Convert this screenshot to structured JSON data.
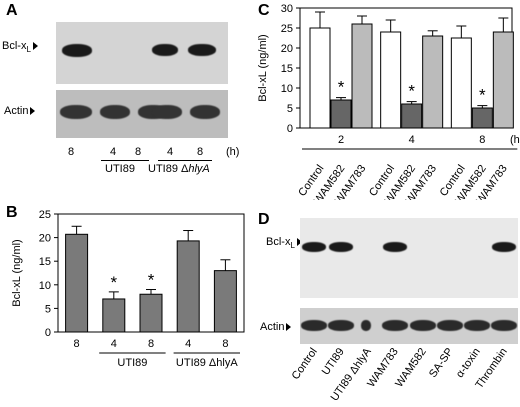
{
  "panels": {
    "A": "A",
    "B": "B",
    "C": "C",
    "D": "D"
  },
  "blot_labels": {
    "bcl": "Bcl-x",
    "bcl_sub": "L",
    "actin": "Actin"
  },
  "panel_a": {
    "lanes": [
      "8",
      "4",
      "8",
      "4",
      "8"
    ],
    "unit": "(h)",
    "group1": "UTI89",
    "group2_prefix": "UTI89 Δ",
    "group2_gene": "hlyA",
    "bcl_band_intensity": [
      1,
      0,
      0,
      0.9,
      0.9
    ],
    "actin_band_intensity": [
      1,
      1,
      1,
      1,
      1
    ]
  },
  "panel_d": {
    "lanes": [
      "Control",
      "UTI89",
      "UTI89 ΔhlyA",
      "WAM783",
      "WAM582",
      "SA-SP",
      "α-toxin",
      "Thrombin"
    ],
    "bcl_band_intensity": [
      1,
      1,
      0,
      1,
      0,
      0,
      0,
      1
    ],
    "actin_band_intensity": [
      1,
      1,
      0.2,
      1,
      1,
      1,
      1,
      1
    ]
  },
  "chart_data": [
    {
      "panel": "B",
      "type": "bar",
      "categories": [
        "8",
        "4",
        "8",
        "4",
        "8"
      ],
      "groups": [
        {
          "label": "UTI89",
          "categories": [
            1,
            2
          ]
        },
        {
          "label": "UTI89 ΔhlyA",
          "categories": [
            3,
            4
          ]
        }
      ],
      "values": [
        20.7,
        7.0,
        8.0,
        19.3,
        13.0
      ],
      "errors": [
        1.7,
        1.5,
        1.0,
        2.2,
        2.3
      ],
      "significance": [
        "",
        "*",
        "*",
        "",
        ""
      ],
      "ylabel": "Bcl-xL (ng/ml)",
      "yticks": [
        0,
        5,
        10,
        15,
        20,
        25
      ],
      "ylim": [
        0,
        25
      ],
      "bar_color": "#7a7a7a"
    },
    {
      "panel": "C",
      "type": "bar",
      "time_points": [
        "2",
        "4",
        "8"
      ],
      "time_unit": "(h)",
      "categories": [
        "Control",
        "WAM582",
        "WAM783"
      ],
      "series": [
        {
          "name": "Control",
          "values": [
            25.0,
            24.0,
            22.5
          ],
          "errors": [
            4.0,
            3.0,
            3.0
          ],
          "color": "#ffffff"
        },
        {
          "name": "WAM582",
          "values": [
            7.0,
            6.0,
            5.0
          ],
          "errors": [
            0.6,
            0.6,
            0.6
          ],
          "color": "#666666",
          "significance": [
            "*",
            "*",
            "*"
          ]
        },
        {
          "name": "WAM783",
          "values": [
            26.0,
            23.0,
            24.0
          ],
          "errors": [
            2.0,
            1.3,
            3.5
          ],
          "color": "#bbbbbb"
        }
      ],
      "ylabel": "Bcl-xL (ng/ml)",
      "yticks": [
        0,
        5,
        10,
        15,
        20,
        25,
        30
      ],
      "ylim": [
        0,
        30
      ]
    }
  ]
}
